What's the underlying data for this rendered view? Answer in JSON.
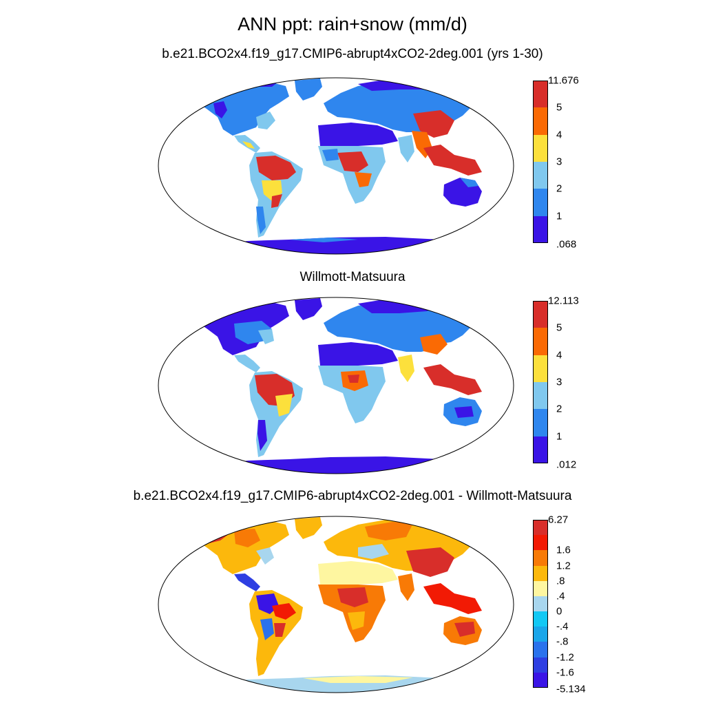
{
  "title": "ANN ppt: rain+snow (mm/d)",
  "panels": [
    {
      "id": "model",
      "title": "b.e21.BCO2x4.f19_g17.CMIP6-abrupt4xCO2-2deg.001 (yrs 1-30)",
      "colorbar": {
        "colors": [
          "#3a14e6",
          "#2f86ee",
          "#80c8ee",
          "#fce03c",
          "#fa6a04",
          "#d82e2a"
        ],
        "labels": [
          ".068",
          "1",
          "2",
          "3",
          "4",
          "5",
          "11.676"
        ]
      }
    },
    {
      "id": "observed",
      "title": "Willmott-Matsuura",
      "colorbar": {
        "colors": [
          "#3a14e6",
          "#2f86ee",
          "#80c8ee",
          "#fce03c",
          "#fa6a04",
          "#d82e2a"
        ],
        "labels": [
          ".012",
          "1",
          "2",
          "3",
          "4",
          "5",
          "12.113"
        ]
      }
    },
    {
      "id": "difference",
      "title": "b.e21.BCO2x4.f19_g17.CMIP6-abrupt4xCO2-2deg.001 - Willmott-Matsuura",
      "colorbar": {
        "colors": [
          "#3a14e6",
          "#2e3fe2",
          "#2a72ec",
          "#1aa6ea",
          "#12c8f4",
          "#a8d6ee",
          "#fef6a0",
          "#fcb80c",
          "#f87a06",
          "#f21a04",
          "#d82e2a"
        ],
        "labels": [
          "-5.134",
          "-1.6",
          "-1.2",
          "-.8",
          "-.4",
          "0",
          ".4",
          ".8",
          "1.2",
          "1.6",
          "6.27"
        ]
      }
    }
  ]
}
